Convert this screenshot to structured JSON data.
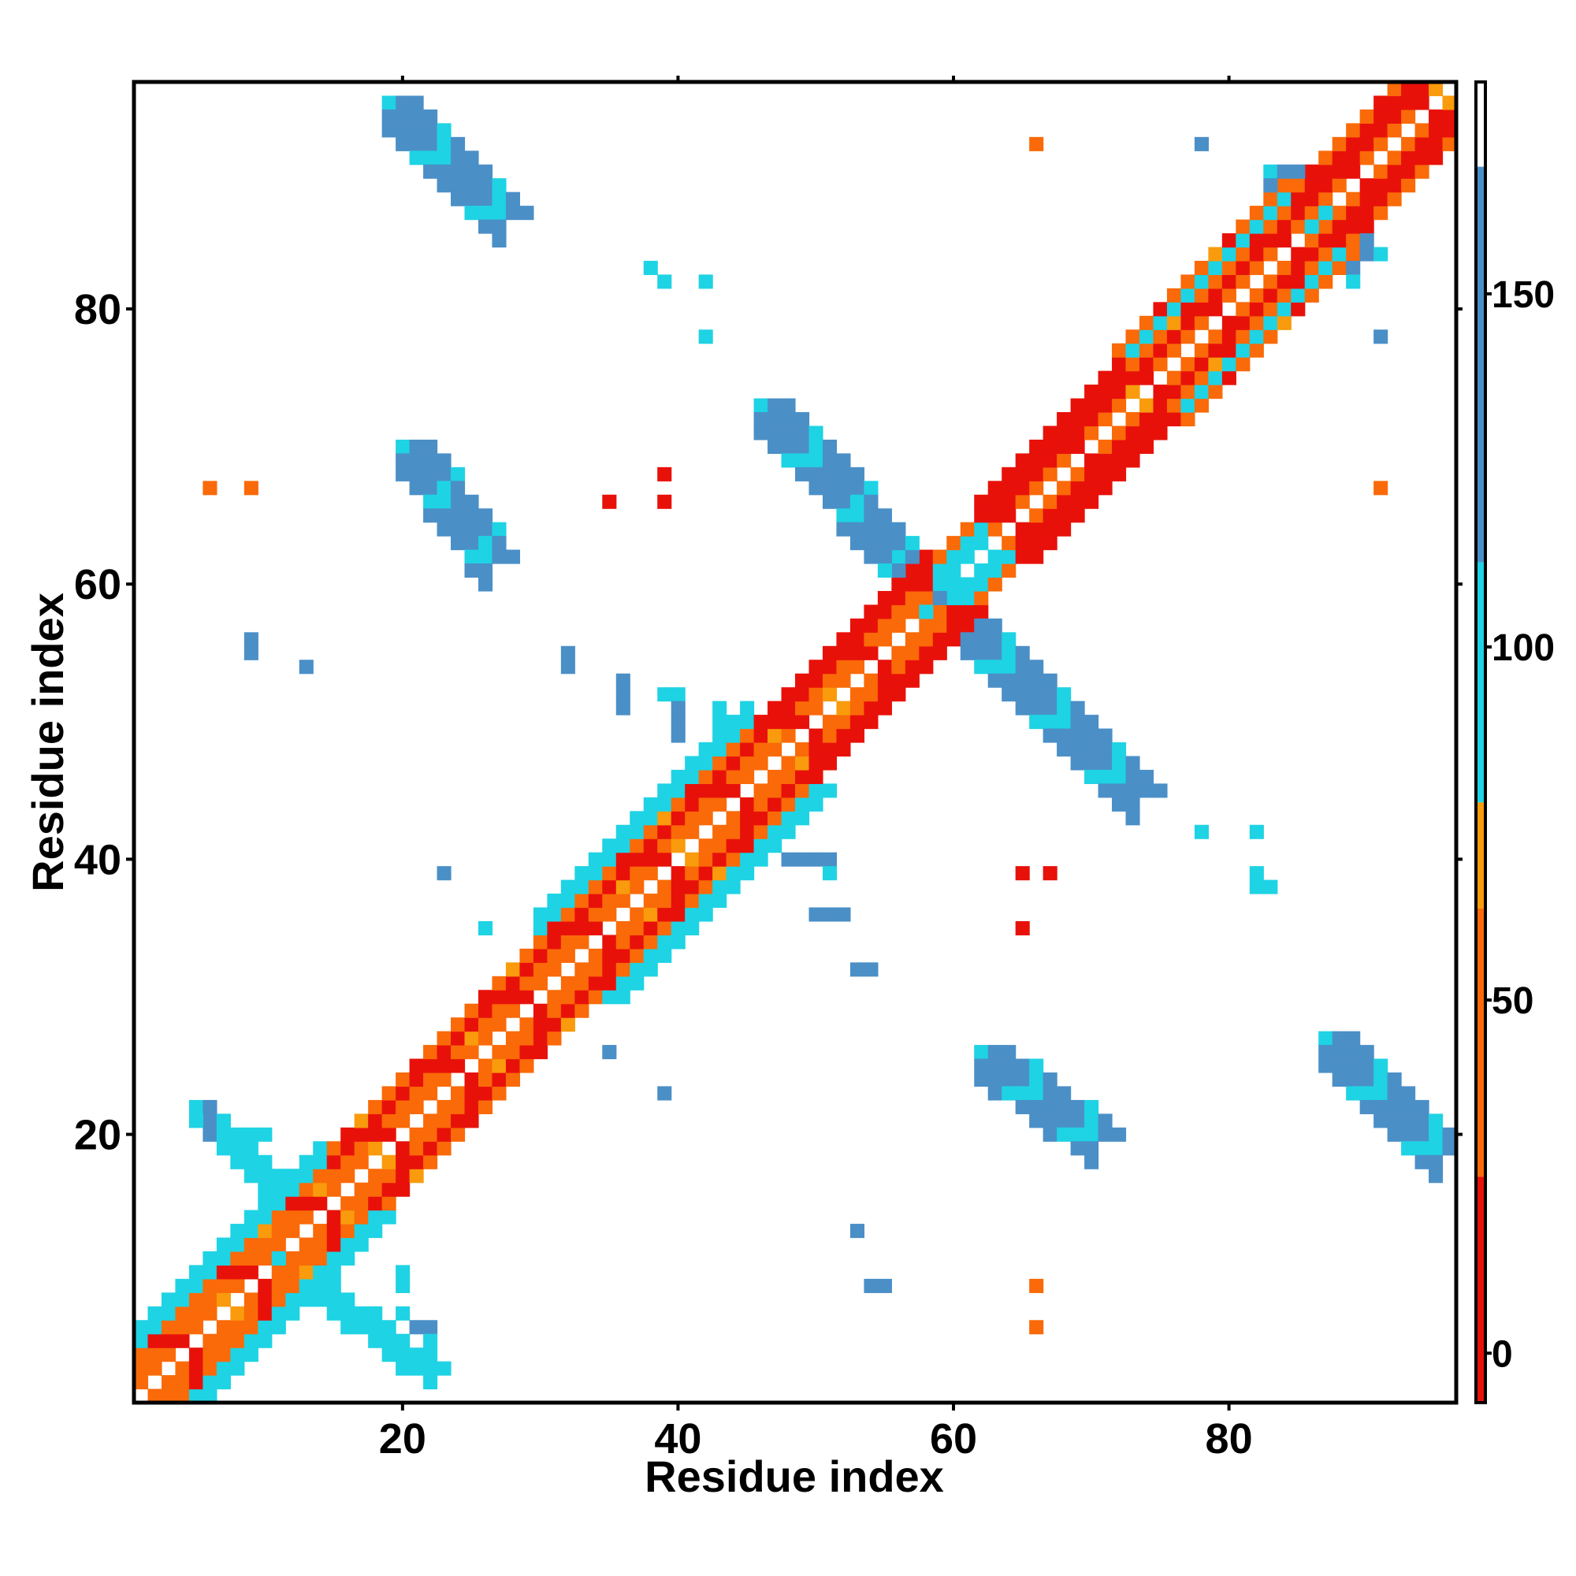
{
  "chart_data": {
    "type": "heatmap",
    "title": "",
    "xlabel": "Residue index",
    "ylabel": "Residue index",
    "x_range": [
      1,
      96
    ],
    "y_range": [
      1,
      96
    ],
    "x_ticks": [
      20,
      40,
      60,
      80
    ],
    "y_ticks": [
      20,
      40,
      60,
      80
    ],
    "colorbar": {
      "ticks": [
        0,
        50,
        100,
        150
      ],
      "range": [
        -7,
        180
      ],
      "bands": [
        {
          "from": -7,
          "to": 25,
          "color": "#e8110a"
        },
        {
          "from": 25,
          "to": 63,
          "color": "#fa6a08"
        },
        {
          "from": 63,
          "to": 78,
          "color": "#f99b0c"
        },
        {
          "from": 78,
          "to": 112,
          "color": "#1ed3e4"
        },
        {
          "from": 112,
          "to": 168,
          "color": "#4b8fc7"
        },
        {
          "from": 168,
          "to": 180,
          "color": "#ffffff"
        }
      ]
    },
    "diagonal_bands": [
      {
        "from": 1,
        "to": 14,
        "widths": {
          "1": "orange",
          "2": "orange",
          "3": "orange",
          "4": "cyan",
          "5": "cyan"
        }
      },
      {
        "from": 14,
        "to": 30,
        "widths": {
          "1": "orange",
          "2": "orange",
          "3": "red",
          "4": "orange"
        }
      },
      {
        "from": 30,
        "to": 45,
        "widths": {
          "1": "orange",
          "2": "orange",
          "3": "red",
          "4": "orange",
          "5": "cyan",
          "6": "cyan"
        }
      },
      {
        "from": 45,
        "to": 58,
        "widths": {
          "1": "orange",
          "2": "orange",
          "3": "red",
          "4": "red"
        }
      },
      {
        "from": 58,
        "to": 62,
        "widths": {
          "1": "cyan",
          "2": "cyan",
          "3": "orange"
        }
      },
      {
        "from": 62,
        "to": 72,
        "widths": {
          "1": "orange",
          "2": "red",
          "3": "red",
          "4": "red"
        }
      },
      {
        "from": 72,
        "to": 84,
        "widths": {
          "1": "orange",
          "2": "red",
          "3": "orange",
          "4": "cyan",
          "5": "orange"
        }
      },
      {
        "from": 84,
        "to": 96,
        "widths": {
          "1": "orange",
          "2": "red",
          "3": "red",
          "4": "orange"
        }
      }
    ],
    "anti_diagonal_strips": [
      {
        "i_start": 56,
        "i_end": 73,
        "j_start": 62,
        "j_end": 45,
        "width": 3,
        "color": "steel"
      },
      {
        "i_start": 46,
        "i_end": 58,
        "j_start": 73,
        "j_end": 60,
        "width": 3,
        "color": "steel"
      },
      {
        "i_start": 20,
        "i_end": 26,
        "j_start": 70,
        "j_end": 62,
        "width": 3,
        "color": "steel"
      },
      {
        "i_start": 62,
        "i_end": 70,
        "j_start": 26,
        "j_end": 20,
        "width": 3,
        "color": "steel"
      },
      {
        "i_start": 19,
        "i_end": 27,
        "j_start": 95,
        "j_end": 87,
        "width": 3,
        "color": "steel"
      },
      {
        "i_start": 87,
        "i_end": 95,
        "j_start": 27,
        "j_end": 19,
        "width": 3,
        "color": "steel"
      },
      {
        "i_start": 83,
        "i_end": 89,
        "j_start": 90,
        "j_end": 84,
        "width": 3,
        "color": "steel"
      },
      {
        "i_start": 5,
        "i_end": 11,
        "j_start": 22,
        "j_end": 16,
        "width": 2,
        "color": "cyan"
      },
      {
        "i_start": 11,
        "i_end": 22,
        "j_start": 11,
        "j_end": 3,
        "width": 2,
        "color": "cyan"
      }
    ],
    "isolated_points": [
      {
        "x": 66,
        "y": 92,
        "color": "orange"
      },
      {
        "x": 78,
        "y": 92,
        "color": "steel"
      },
      {
        "x": 38,
        "y": 83,
        "color": "cyan"
      },
      {
        "x": 39,
        "y": 82,
        "color": "cyan"
      },
      {
        "x": 42,
        "y": 82,
        "color": "cyan"
      },
      {
        "x": 42,
        "y": 78,
        "color": "cyan"
      },
      {
        "x": 91,
        "y": 78,
        "color": "steel"
      },
      {
        "x": 6,
        "y": 67,
        "color": "orange"
      },
      {
        "x": 9,
        "y": 67,
        "color": "orange"
      },
      {
        "x": 39,
        "y": 68,
        "color": "red"
      },
      {
        "x": 35,
        "y": 66,
        "color": "red"
      },
      {
        "x": 39,
        "y": 66,
        "color": "red"
      },
      {
        "x": 91,
        "y": 67,
        "color": "orange"
      },
      {
        "x": 9,
        "y": 56,
        "color": "steel"
      },
      {
        "x": 9,
        "y": 55,
        "color": "steel"
      },
      {
        "x": 13,
        "y": 54,
        "color": "steel"
      },
      {
        "x": 32,
        "y": 55,
        "color": "steel"
      },
      {
        "x": 32,
        "y": 54,
        "color": "steel"
      },
      {
        "x": 36,
        "y": 53,
        "color": "steel"
      },
      {
        "x": 36,
        "y": 52,
        "color": "steel"
      },
      {
        "x": 36,
        "y": 51,
        "color": "steel"
      },
      {
        "x": 39,
        "y": 52,
        "color": "cyan"
      },
      {
        "x": 40,
        "y": 52,
        "color": "cyan"
      },
      {
        "x": 40,
        "y": 51,
        "color": "steel"
      },
      {
        "x": 40,
        "y": 50,
        "color": "steel"
      },
      {
        "x": 40,
        "y": 49,
        "color": "steel"
      },
      {
        "x": 43,
        "y": 51,
        "color": "cyan"
      },
      {
        "x": 43,
        "y": 50,
        "color": "cyan"
      },
      {
        "x": 23,
        "y": 39,
        "color": "steel"
      },
      {
        "x": 26,
        "y": 35,
        "color": "cyan"
      },
      {
        "x": 48,
        "y": 40,
        "color": "steel"
      },
      {
        "x": 49,
        "y": 40,
        "color": "steel"
      },
      {
        "x": 50,
        "y": 40,
        "color": "steel"
      },
      {
        "x": 51,
        "y": 40,
        "color": "steel"
      },
      {
        "x": 51,
        "y": 39,
        "color": "cyan"
      },
      {
        "x": 50,
        "y": 36,
        "color": "steel"
      },
      {
        "x": 51,
        "y": 36,
        "color": "steel"
      },
      {
        "x": 52,
        "y": 36,
        "color": "steel"
      },
      {
        "x": 53,
        "y": 32,
        "color": "steel"
      },
      {
        "x": 54,
        "y": 32,
        "color": "steel"
      },
      {
        "x": 65,
        "y": 39,
        "color": "red"
      },
      {
        "x": 67,
        "y": 39,
        "color": "red"
      },
      {
        "x": 65,
        "y": 35,
        "color": "red"
      },
      {
        "x": 78,
        "y": 42,
        "color": "cyan"
      },
      {
        "x": 82,
        "y": 42,
        "color": "cyan"
      },
      {
        "x": 82,
        "y": 39,
        "color": "cyan"
      },
      {
        "x": 82,
        "y": 38,
        "color": "cyan"
      },
      {
        "x": 83,
        "y": 38,
        "color": "cyan"
      },
      {
        "x": 35,
        "y": 26,
        "color": "steel"
      },
      {
        "x": 39,
        "y": 23,
        "color": "steel"
      },
      {
        "x": 53,
        "y": 13,
        "color": "steel"
      },
      {
        "x": 54,
        "y": 9,
        "color": "steel"
      },
      {
        "x": 55,
        "y": 9,
        "color": "steel"
      },
      {
        "x": 66,
        "y": 9,
        "color": "orange"
      },
      {
        "x": 66,
        "y": 6,
        "color": "orange"
      },
      {
        "x": 21,
        "y": 6,
        "color": "steel"
      },
      {
        "x": 22,
        "y": 6,
        "color": "steel"
      },
      {
        "x": 22,
        "y": 5,
        "color": "cyan"
      },
      {
        "x": 20,
        "y": 7,
        "color": "cyan"
      },
      {
        "x": 20,
        "y": 9,
        "color": "cyan"
      },
      {
        "x": 20,
        "y": 10,
        "color": "cyan"
      },
      {
        "x": 17,
        "y": 7,
        "color": "cyan"
      },
      {
        "x": 16,
        "y": 7,
        "color": "cyan"
      },
      {
        "x": 16,
        "y": 6,
        "color": "cyan"
      },
      {
        "x": 5,
        "y": 22,
        "color": "cyan"
      },
      {
        "x": 6,
        "y": 22,
        "color": "steel"
      },
      {
        "x": 6,
        "y": 21,
        "color": "steel"
      },
      {
        "x": 6,
        "y": 20,
        "color": "steel"
      },
      {
        "x": 10,
        "y": 20,
        "color": "cyan"
      },
      {
        "x": 9,
        "y": 20,
        "color": "cyan"
      }
    ],
    "palette": {
      "red": "#e8110a",
      "orange": "#fa6a08",
      "amber": "#f99b0c",
      "cyan": "#1ed3e4",
      "steel": "#4b8fc7"
    }
  }
}
